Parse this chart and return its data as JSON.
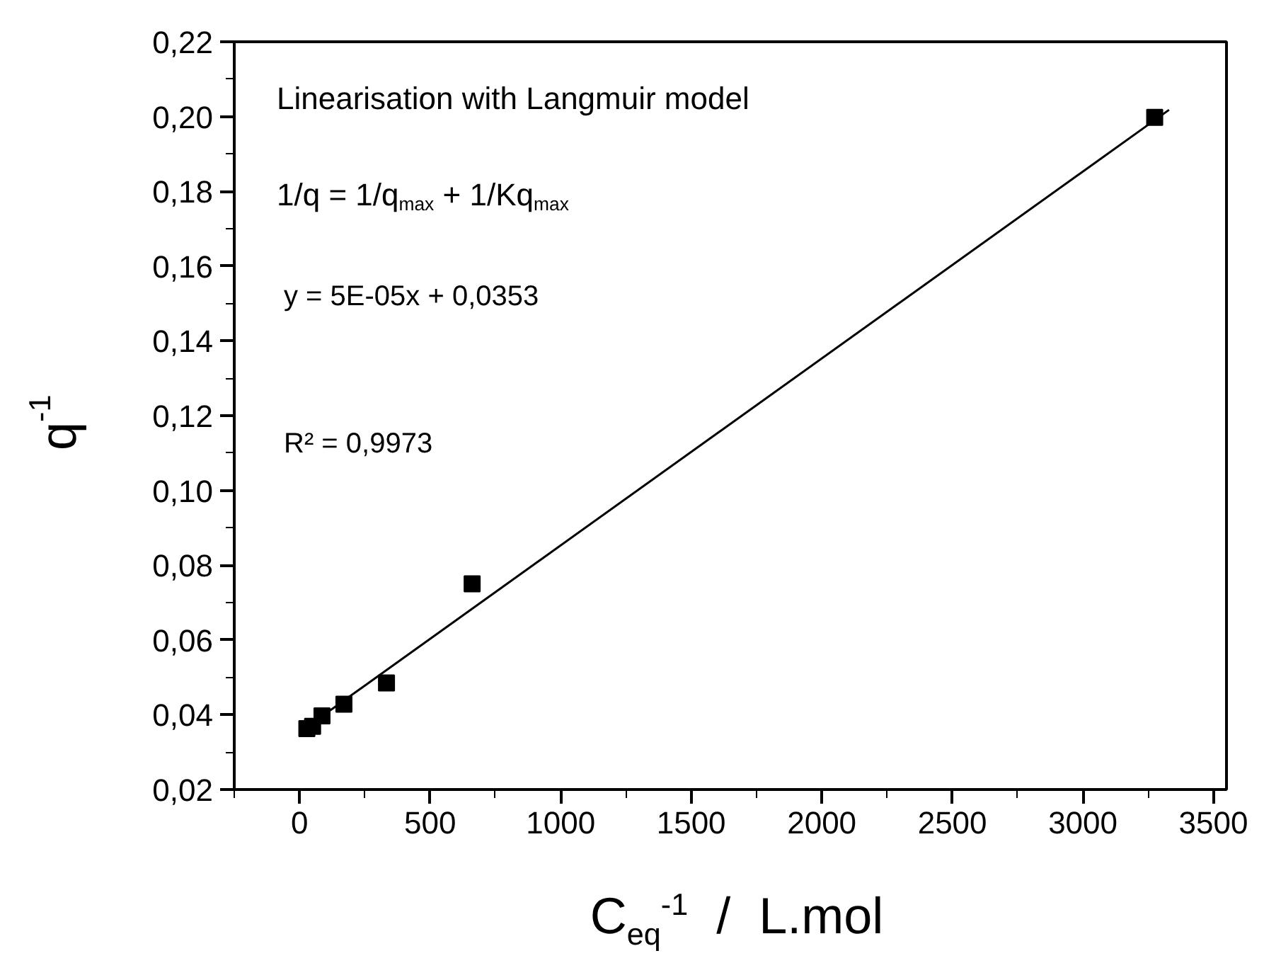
{
  "chart_data": {
    "type": "scatter",
    "xlabel": "C$_{eq}$$^{-1}$  /  L.mol",
    "ylabel": "q$^{-1}$",
    "xlim": [
      -250,
      3550
    ],
    "xticks": [
      0,
      500,
      1000,
      1500,
      2000,
      2500,
      3000,
      3500
    ],
    "ylim": [
      0.02,
      0.22
    ],
    "yticks": [
      {
        "value": 0.02,
        "label": "0,02"
      },
      {
        "value": 0.04,
        "label": "0,04"
      },
      {
        "value": 0.06,
        "label": "0,06"
      },
      {
        "value": 0.08,
        "label": "0,08"
      },
      {
        "value": 0.1,
        "label": "0,10"
      },
      {
        "value": 0.12,
        "label": "0,12"
      },
      {
        "value": 0.14,
        "label": "0,14"
      },
      {
        "value": 0.16,
        "label": "0,16"
      },
      {
        "value": 0.18,
        "label": "0,18"
      },
      {
        "value": 0.2,
        "label": "0,20"
      },
      {
        "value": 0.22,
        "label": "0,22"
      }
    ],
    "marker": "square",
    "series": [
      {
        "color": "#000000",
        "x": [
          28,
          50,
          86,
          170,
          333,
          661,
          3275
        ],
        "values": [
          0.0363,
          0.0369,
          0.0397,
          0.0428,
          0.0485,
          0.075,
          0.1998
        ]
      },
      {
        "type": "line",
        "color": "#000000",
        "marker": "none",
        "x": [
          50,
          3330
        ],
        "values": [
          0.0378,
          0.2018
        ]
      }
    ],
    "annotations": [
      "Linearisation with Langmuir model",
      "1/q = 1/q$_{max}$ + 1/Kq$_{max}$",
      "y = 5E-05x + 0,0353",
      "R² = 0,9973"
    ]
  }
}
